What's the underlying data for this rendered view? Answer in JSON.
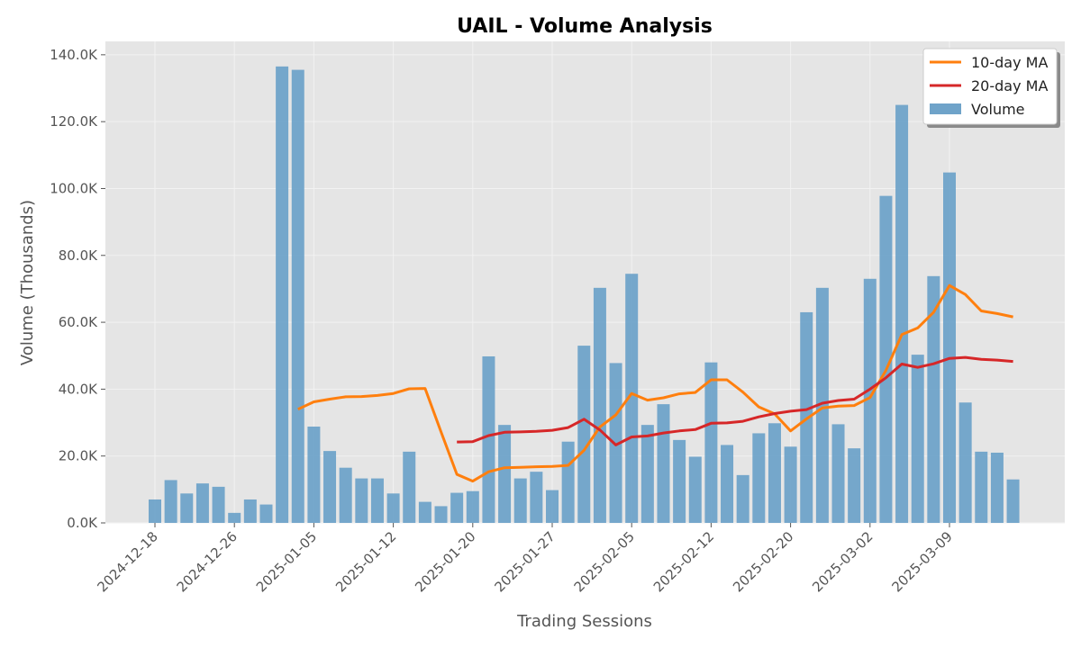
{
  "chart_data": {
    "type": "bar",
    "title": "UAIL - Volume Analysis",
    "xlabel": "Trading Sessions",
    "ylabel": "Volume (Thousands)",
    "ylim": [
      0,
      144000
    ],
    "yticks": [
      0,
      20000,
      40000,
      60000,
      80000,
      100000,
      120000,
      140000
    ],
    "ytick_labels": [
      "0.0K",
      "20.0K",
      "40.0K",
      "60.0K",
      "80.0K",
      "100.0K",
      "120.0K",
      "140.0K"
    ],
    "xticks": [
      {
        "index": 0,
        "label": "2024-12-18"
      },
      {
        "index": 5,
        "label": "2024-12-26"
      },
      {
        "index": 10,
        "label": "2025-01-05"
      },
      {
        "index": 15,
        "label": "2025-01-12"
      },
      {
        "index": 20,
        "label": "2025-01-20"
      },
      {
        "index": 25,
        "label": "2025-01-27"
      },
      {
        "index": 30,
        "label": "2025-02-05"
      },
      {
        "index": 35,
        "label": "2025-02-12"
      },
      {
        "index": 40,
        "label": "2025-02-20"
      },
      {
        "index": 45,
        "label": "2025-03-02"
      },
      {
        "index": 50,
        "label": "2025-03-09"
      }
    ],
    "grid": true,
    "legend_position": "top-right",
    "series": [
      {
        "name": "Volume",
        "kind": "bar",
        "color": "#6fa3c9",
        "values": [
          7000,
          12800,
          8800,
          11800,
          10800,
          3000,
          7000,
          5500,
          136500,
          135500,
          28800,
          21500,
          16500,
          13300,
          13300,
          8800,
          21300,
          6300,
          5000,
          9000,
          9500,
          49800,
          29300,
          13300,
          15300,
          9800,
          24300,
          53000,
          70300,
          47800,
          74500,
          29300,
          35500,
          24800,
          19800,
          48000,
          23300,
          14300,
          26800,
          29800,
          22800,
          63000,
          70300,
          29500,
          22300,
          73000,
          97800,
          125000,
          50300,
          73800,
          104800,
          36000,
          21300,
          21000,
          13000
        ]
      },
      {
        "name": "10-day MA",
        "kind": "line",
        "color": "#ff7f0e",
        "values": [
          null,
          null,
          null,
          null,
          null,
          null,
          null,
          null,
          null,
          34000,
          36200,
          37000,
          37700,
          37800,
          38100,
          38700,
          40100,
          40200,
          27300,
          14500,
          12500,
          15300,
          16500,
          16600,
          16800,
          16900,
          17200,
          21700,
          28700,
          32300,
          38700,
          36700,
          37400,
          38600,
          39000,
          42800,
          42800,
          39100,
          34700,
          32600,
          27500,
          31100,
          34400,
          34900,
          35100,
          37500,
          45600,
          56300,
          58300,
          63000,
          71000,
          68300,
          63400,
          62600,
          61600
        ]
      },
      {
        "name": "20-day MA",
        "kind": "line",
        "color": "#d62728",
        "values": [
          null,
          null,
          null,
          null,
          null,
          null,
          null,
          null,
          null,
          null,
          null,
          null,
          null,
          null,
          null,
          null,
          null,
          null,
          null,
          24200,
          24300,
          26100,
          27100,
          27200,
          27400,
          27700,
          28500,
          31000,
          27800,
          23300,
          25700,
          26000,
          26900,
          27500,
          27900,
          29800,
          29900,
          30400,
          31700,
          32700,
          33400,
          33900,
          35800,
          36600,
          37000,
          40000,
          43400,
          47500,
          46500,
          47600,
          49200,
          49500,
          48900,
          48700,
          48300
        ]
      }
    ]
  }
}
